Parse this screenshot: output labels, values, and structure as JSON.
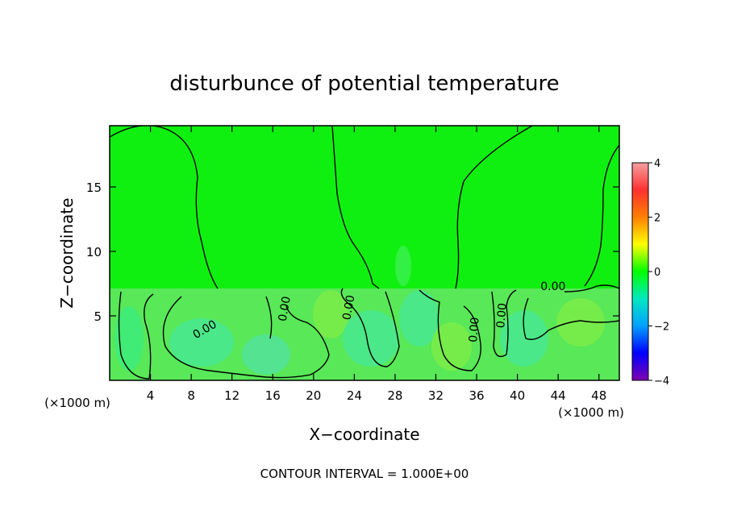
{
  "chart_data": {
    "type": "heatmap",
    "title": "disturbunce of potential temperature",
    "xlabel": "X−coordinate",
    "ylabel": "Z−coordinate",
    "x_unit_label": "(×1000 m)",
    "y_unit_label": "(×1000 m)",
    "x_ticks": [
      "4",
      "8",
      "12",
      "16",
      "20",
      "24",
      "28",
      "32",
      "36",
      "40",
      "44",
      "48"
    ],
    "y_ticks": [
      "5",
      "10",
      "15"
    ],
    "xlim": [
      0,
      50
    ],
    "ylim": [
      0,
      19.75
    ],
    "colorbar": {
      "range": [
        -4,
        4
      ],
      "ticks": [
        "4",
        "2",
        "0",
        "−2",
        "−4"
      ],
      "colors": [
        "#f4a0a0",
        "#ff3030",
        "#ff8000",
        "#ffff00",
        "#00ff00",
        "#00e8c0",
        "#00a0ff",
        "#0000ff",
        "#8000b0"
      ]
    },
    "background_value": 0,
    "contour_interval_text": "CONTOUR INTERVAL = 1.000E+00",
    "contour_labels": [
      {
        "text": "0.00",
        "x": 17.5,
        "z": 5.5,
        "angle": -80
      },
      {
        "text": "0.00",
        "x": 9.5,
        "z": 3.7,
        "angle": -30
      },
      {
        "text": "0.00",
        "x": 23.8,
        "z": 5.6,
        "angle": -80
      },
      {
        "text": "0.00",
        "x": 36.1,
        "z": 3.9,
        "angle": -85
      },
      {
        "text": "0.00",
        "x": 38.8,
        "z": 5.0,
        "angle": -85
      },
      {
        "text": "0.00",
        "x": 43.5,
        "z": 7.0,
        "angle": 0
      }
    ]
  }
}
